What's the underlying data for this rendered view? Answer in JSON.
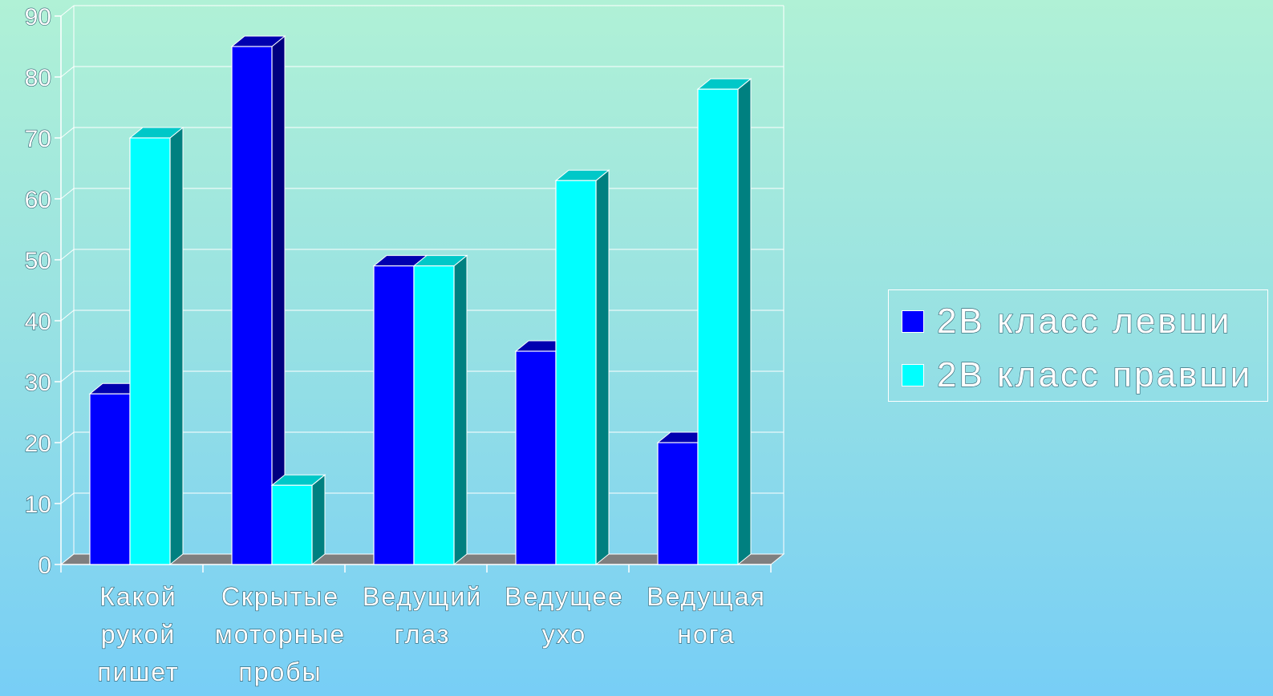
{
  "chart_data": {
    "type": "bar",
    "categories": [
      [
        "Какой",
        "рукой",
        "пишет"
      ],
      [
        "Скрытые",
        "моторные",
        "пробы"
      ],
      [
        "Ведущий",
        "глаз"
      ],
      [
        "Ведущее",
        "ухо"
      ],
      [
        "Ведущая",
        "нога"
      ]
    ],
    "series": [
      {
        "name": "2В класс левши",
        "color": "#0000ff",
        "top_color": "#0000b0",
        "side_color": "#000080",
        "values": [
          28,
          85,
          49,
          35,
          20
        ]
      },
      {
        "name": "2В класс правши",
        "color": "#00ffff",
        "top_color": "#00c8c8",
        "side_color": "#008080",
        "values": [
          70,
          13,
          49,
          63,
          78
        ]
      }
    ],
    "ylim": [
      0,
      90
    ],
    "yticks": [
      0,
      10,
      20,
      30,
      40,
      50,
      60,
      70,
      80,
      90
    ],
    "grid": true,
    "legend_position": "right",
    "style": "3d"
  },
  "legend": {
    "items": [
      {
        "label": "2В класс левши",
        "color": "#0000ff"
      },
      {
        "label": "2В класс правши",
        "color": "#00ffff"
      }
    ]
  }
}
